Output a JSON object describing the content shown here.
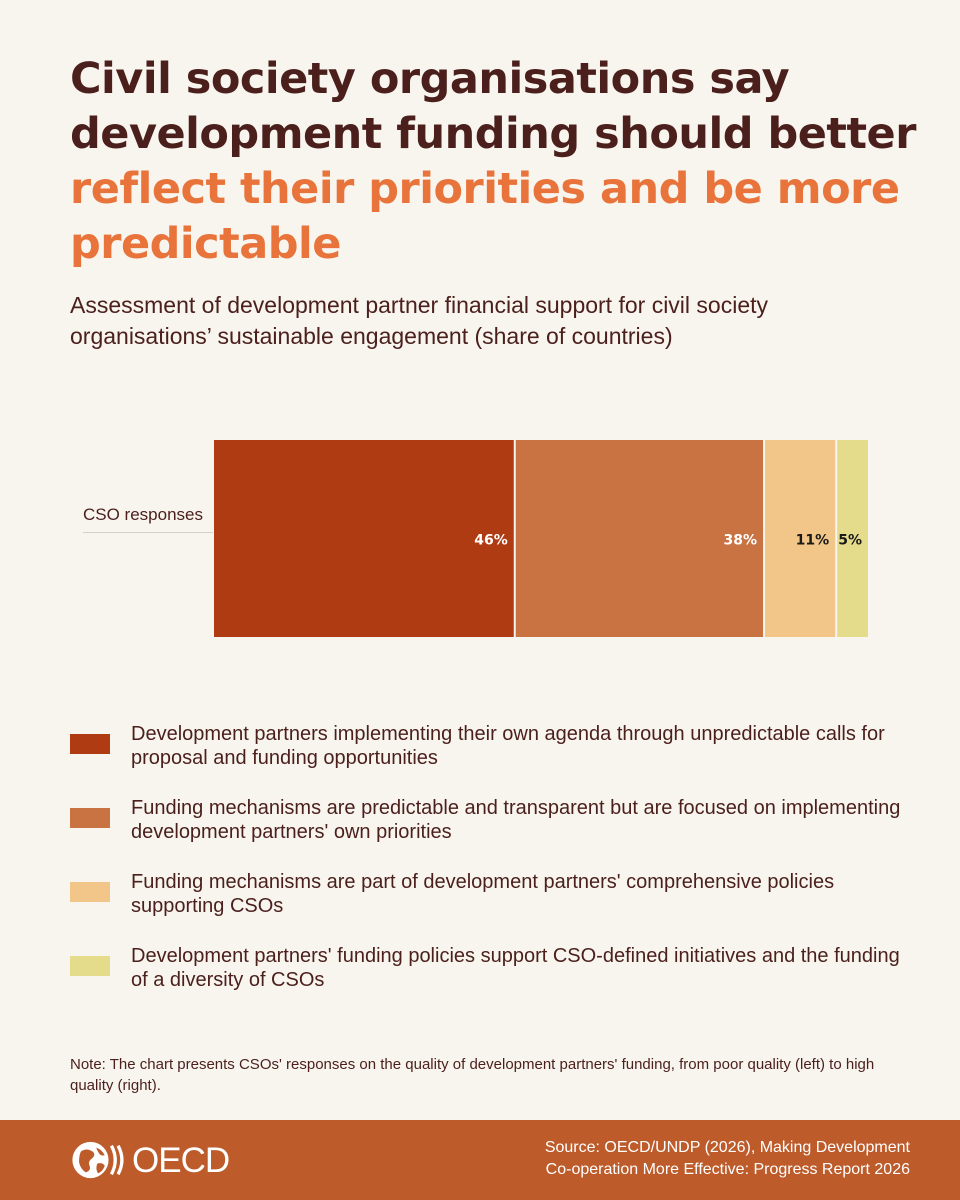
{
  "header": {
    "title_line1": "Civil society organisations say development funding should better",
    "title_line2": "reflect their priorities and be more predictable",
    "subtitle": "Assessment of development partner financial support for civil society organisations’ sustainable engagement (share of countries)"
  },
  "chart_data": {
    "type": "bar",
    "orientation": "horizontal-stacked",
    "categories": [
      "CSO responses"
    ],
    "series": [
      {
        "name": "Development partners implementing their own agenda through unpredictable calls for proposal and funding opportunities",
        "values": [
          46
        ],
        "label": "46%",
        "color": "#ae3b12",
        "label_color": "#ffffff"
      },
      {
        "name": "Funding mechanisms are predictable and transparent but are focused on implementing development partners' own priorities",
        "values": [
          38
        ],
        "label": "38%",
        "color": "#c97342",
        "label_color": "#ffffff"
      },
      {
        "name": "Funding mechanisms are part of development partners' comprehensive policies supporting CSOs",
        "values": [
          11
        ],
        "label": "11%",
        "color": "#f2c688",
        "label_color": "#1a1a1a"
      },
      {
        "name": "Development partners' funding policies support CSO-defined initiatives and the funding of a diversity of CSOs",
        "values": [
          5
        ],
        "label": "5%",
        "color": "#e4dc8a",
        "label_color": "#1a1a1a"
      }
    ],
    "xlim": [
      0,
      100
    ],
    "legend_position": "bottom",
    "grid": false
  },
  "note": "Note: The chart presents CSOs' responses on the quality of development partners' funding, from poor quality (left) to high quality (right).",
  "footer": {
    "logo_text": "OECD",
    "source_line1": "Source: OECD/UNDP (2026), Making Development",
    "source_line2": "Co-operation More Effective: Progress Report 2026"
  },
  "colors": {
    "background": "#f8f4ee",
    "title_dark": "#4a1f1c",
    "title_accent": "#e8743b",
    "footer": "#bd5b2b"
  }
}
